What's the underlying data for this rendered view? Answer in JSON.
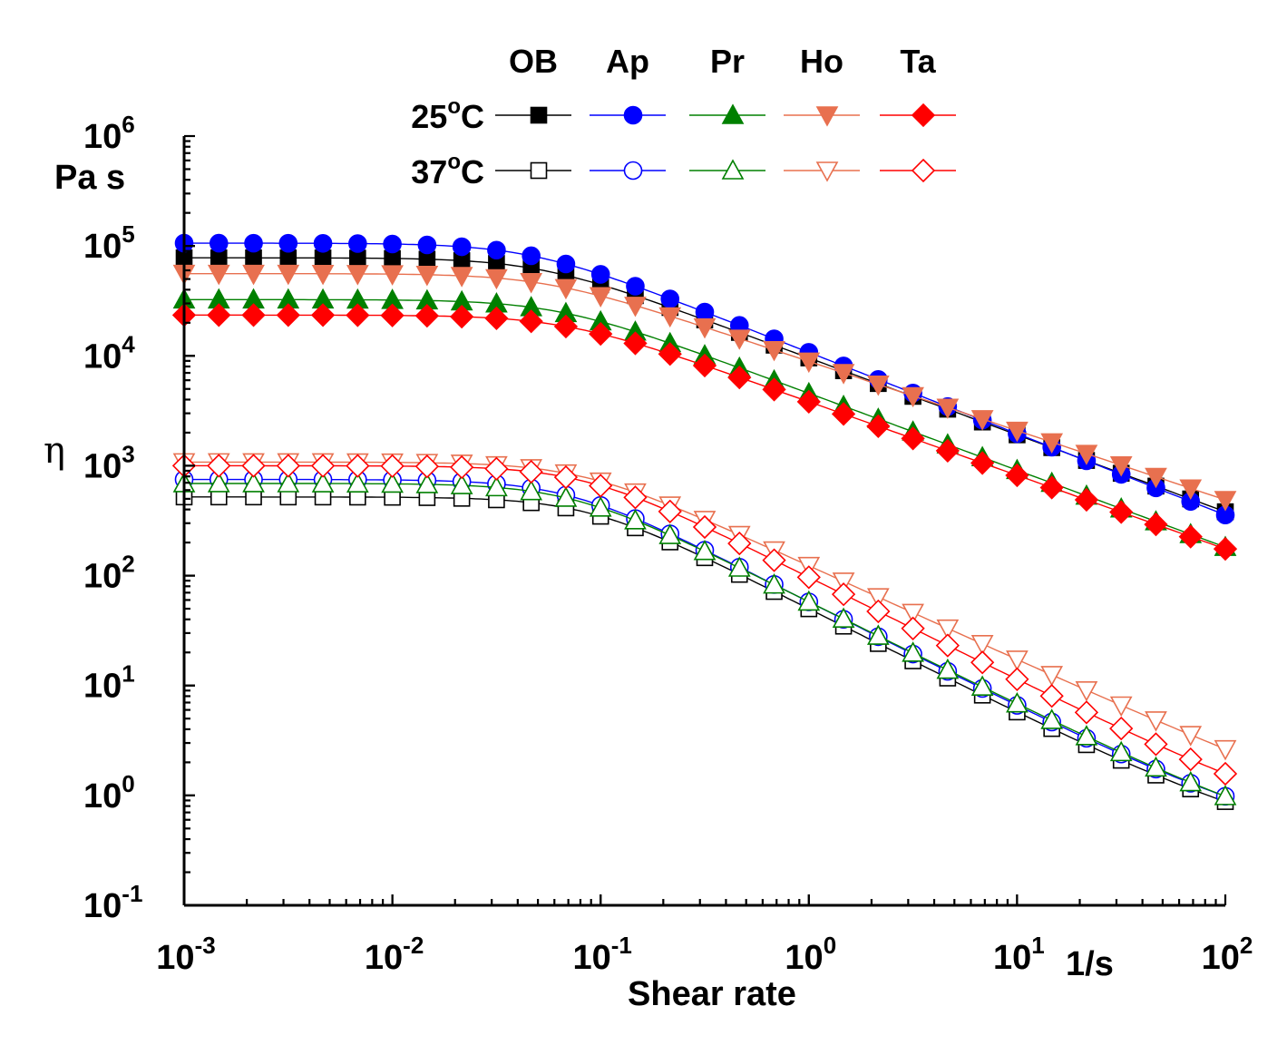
{
  "chart_data": {
    "type": "line",
    "title": "",
    "xlabel": "Shear rate",
    "xunit": "1/s",
    "ylabel": "η",
    "yunit": "Pa s",
    "xscale": "log",
    "yscale": "log",
    "xlim": [
      0.001,
      100
    ],
    "ylim": [
      0.1,
      1000000
    ],
    "x_ticks": [
      {
        "base": "10",
        "exp": "-3",
        "value": 0.001
      },
      {
        "base": "10",
        "exp": "-2",
        "value": 0.01
      },
      {
        "base": "10",
        "exp": "-1",
        "value": 0.1
      },
      {
        "base": "10",
        "exp": "0",
        "value": 1
      },
      {
        "base": "10",
        "exp": "1",
        "value": 10
      },
      {
        "base": "10",
        "exp": "2",
        "value": 100
      }
    ],
    "y_ticks": [
      {
        "base": "10",
        "exp": "-1",
        "value": 0.1
      },
      {
        "base": "10",
        "exp": "0",
        "value": 1
      },
      {
        "base": "10",
        "exp": "1",
        "value": 10
      },
      {
        "base": "10",
        "exp": "2",
        "value": 100
      },
      {
        "base": "10",
        "exp": "3",
        "value": 1000
      },
      {
        "base": "10",
        "exp": "4",
        "value": 10000
      },
      {
        "base": "10",
        "exp": "5",
        "value": 100000
      },
      {
        "base": "10",
        "exp": "6",
        "value": 1000000
      }
    ],
    "legend": {
      "placement": "top",
      "columns": [
        "OB",
        "Ap",
        "Pr",
        "Ho",
        "Ta"
      ],
      "rows": [
        {
          "num": "25",
          "sup": "o",
          "unit": "C",
          "filled": true
        },
        {
          "num": "37",
          "sup": "o",
          "unit": "C",
          "filled": false
        }
      ]
    },
    "series": [
      {
        "name": "OB 25°C",
        "sample": "OB",
        "temp": "25",
        "marker": "square",
        "filled": true,
        "color": "#000000",
        "params": {
          "eta0": 78000,
          "lambda": 20,
          "n": 0.3
        }
      },
      {
        "name": "Ap 25°C",
        "sample": "Ap",
        "temp": "25",
        "marker": "circle",
        "filled": true,
        "color": "#0000ff",
        "params": {
          "eta0": 106000,
          "lambda": 22,
          "n": 0.26
        }
      },
      {
        "name": "Pr 25°C",
        "sample": "Pr",
        "temp": "25",
        "marker": "triangle-up",
        "filled": true,
        "color": "#008000",
        "params": {
          "eta0": 32500,
          "lambda": 16.5,
          "n": 0.3
        }
      },
      {
        "name": "Ho 25°C",
        "sample": "Ho",
        "temp": "25",
        "marker": "triangle-down",
        "filled": true,
        "color": "#e8704f",
        "params": {
          "eta0": 56000,
          "lambda": 18.5,
          "n": 0.37
        }
      },
      {
        "name": "Ta 25°C",
        "sample": "Ta",
        "temp": "25",
        "marker": "diamond",
        "filled": true,
        "color": "#ff0000",
        "params": {
          "eta0": 23500,
          "lambda": 15,
          "n": 0.33
        }
      },
      {
        "name": "OB 37°C",
        "sample": "OB",
        "temp": "37",
        "marker": "square",
        "filled": false,
        "color": "#000000",
        "params": {
          "eta0": 520,
          "lambda": 11.5,
          "n": 0.04,
          "eta_inf": 0.28
        }
      },
      {
        "name": "Ap 37°C",
        "sample": "Ap",
        "temp": "37",
        "marker": "circle",
        "filled": false,
        "color": "#0000ff",
        "params": {
          "eta0": 750,
          "lambda": 14.5,
          "n": 0.04,
          "eta_inf": 0.29
        }
      },
      {
        "name": "Pr 37°C",
        "sample": "Pr",
        "temp": "37",
        "marker": "triangle-up",
        "filled": false,
        "color": "#008000",
        "params": {
          "eta0": 690,
          "lambda": 14,
          "n": 0.06,
          "eta_inf": 0.22
        }
      },
      {
        "name": "Ho 37°C",
        "sample": "Ho",
        "temp": "37",
        "marker": "triangle-down",
        "filled": false,
        "color": "#e8704f",
        "params": {
          "eta0": 1080,
          "lambda": 12.5,
          "n": 0.14,
          "eta_inf": 0.3
        }
      },
      {
        "name": "Ta 37°C",
        "sample": "Ta",
        "temp": "37",
        "marker": "diamond",
        "filled": false,
        "color": "#ff0000",
        "params": {
          "eta0": 1000,
          "lambda": 12,
          "n": 0.06,
          "eta_inf": 0.3
        }
      }
    ]
  }
}
